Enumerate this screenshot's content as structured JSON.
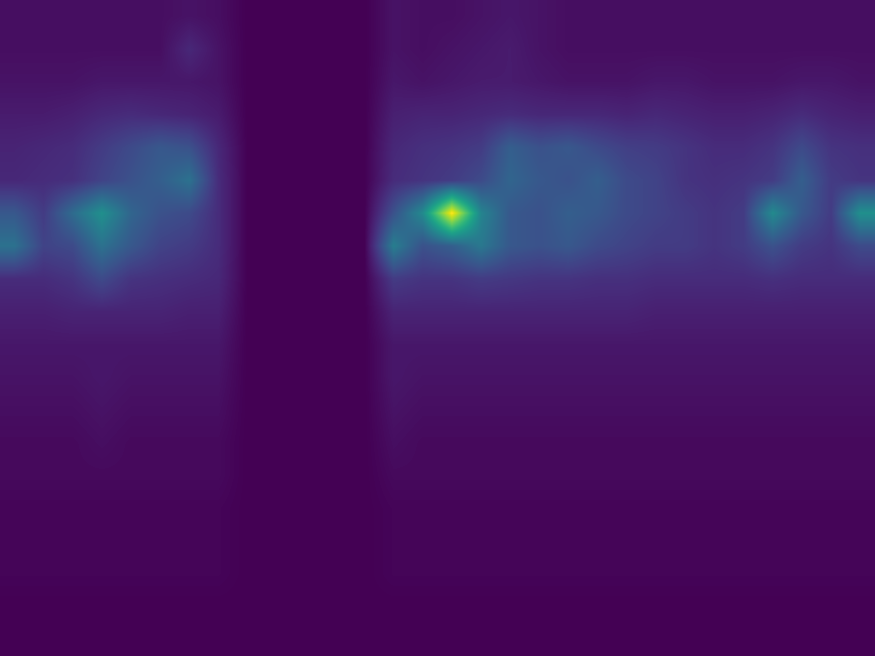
{
  "chart_data": {
    "type": "heatmap",
    "tick_labels": false,
    "cells": [
      [
        3,
        3,
        3,
        3,
        3,
        3,
        4,
        3,
        0,
        0,
        0,
        0,
        0,
        4,
        3,
        3,
        4,
        5,
        4,
        3,
        3,
        3,
        3,
        3,
        3,
        3,
        3,
        3,
        3,
        3
      ],
      [
        3,
        3,
        3,
        3,
        3,
        3,
        9,
        4,
        0,
        0,
        0,
        0,
        0,
        4,
        3,
        4,
        5,
        6,
        4,
        3,
        3,
        3,
        3,
        3,
        3,
        3,
        3,
        3,
        3,
        3
      ],
      [
        4,
        4,
        4,
        5,
        5,
        5,
        5,
        4,
        0,
        0,
        0,
        0,
        0,
        5,
        4,
        5,
        6,
        6,
        5,
        4,
        4,
        4,
        5,
        5,
        4,
        4,
        4,
        5,
        5,
        4
      ],
      [
        6,
        6,
        7,
        9,
        10,
        9,
        8,
        6,
        0,
        0,
        0,
        0,
        0,
        7,
        8,
        8,
        9,
        10,
        9,
        9,
        9,
        8,
        9,
        8,
        7,
        7,
        8,
        10,
        8,
        7
      ],
      [
        8,
        9,
        10,
        14,
        18,
        22,
        20,
        9,
        0,
        0,
        0,
        0,
        0,
        9,
        11,
        12,
        14,
        24,
        20,
        22,
        18,
        15,
        14,
        12,
        10,
        10,
        12,
        18,
        12,
        11
      ],
      [
        9,
        10,
        11,
        16,
        20,
        24,
        30,
        10,
        0,
        0,
        0,
        0,
        0,
        10,
        12,
        14,
        18,
        26,
        22,
        20,
        24,
        18,
        16,
        12,
        11,
        12,
        14,
        24,
        14,
        12
      ],
      [
        22,
        14,
        28,
        40,
        26,
        20,
        18,
        10,
        0,
        0,
        0,
        0,
        0,
        20,
        38,
        80,
        36,
        22,
        20,
        24,
        22,
        18,
        16,
        14,
        12,
        14,
        38,
        22,
        14,
        40
      ],
      [
        30,
        16,
        18,
        30,
        22,
        16,
        14,
        10,
        0,
        0,
        0,
        0,
        0,
        34,
        20,
        24,
        32,
        22,
        20,
        22,
        18,
        16,
        14,
        14,
        12,
        14,
        20,
        14,
        12,
        18
      ],
      [
        10,
        10,
        12,
        18,
        12,
        11,
        10,
        9,
        0,
        0,
        0,
        0,
        0,
        14,
        12,
        12,
        14,
        13,
        12,
        12,
        11,
        11,
        10,
        10,
        10,
        10,
        11,
        10,
        10,
        10
      ],
      [
        7,
        7,
        8,
        8,
        8,
        8,
        7,
        7,
        0,
        0,
        0,
        0,
        0,
        8,
        8,
        8,
        8,
        8,
        8,
        8,
        8,
        8,
        7,
        7,
        7,
        7,
        7,
        7,
        7,
        7
      ],
      [
        5,
        5,
        5,
        5,
        5,
        5,
        5,
        5,
        0,
        0,
        0,
        0,
        0,
        5,
        5,
        5,
        5,
        5,
        5,
        5,
        5,
        5,
        5,
        5,
        5,
        5,
        5,
        5,
        5,
        5
      ],
      [
        4,
        4,
        4,
        5,
        4,
        4,
        4,
        4,
        0,
        0,
        0,
        0,
        0,
        5,
        4,
        4,
        4,
        4,
        4,
        4,
        4,
        4,
        4,
        4,
        4,
        4,
        4,
        4,
        4,
        4
      ],
      [
        3,
        3,
        3,
        4,
        3,
        3,
        3,
        3,
        0,
        0,
        0,
        0,
        0,
        4,
        3,
        3,
        3,
        3,
        3,
        3,
        3,
        3,
        3,
        3,
        3,
        3,
        3,
        3,
        3,
        3
      ],
      [
        2,
        2,
        2,
        3,
        2,
        2,
        2,
        2,
        0,
        0,
        0,
        0,
        0,
        3,
        2,
        2,
        2,
        2,
        2,
        2,
        2,
        2,
        2,
        2,
        2,
        2,
        2,
        2,
        2,
        2
      ],
      [
        2,
        2,
        2,
        2,
        2,
        2,
        2,
        2,
        0,
        0,
        0,
        0,
        0,
        2,
        2,
        2,
        2,
        2,
        2,
        2,
        2,
        2,
        2,
        2,
        2,
        2,
        2,
        2,
        2,
        2
      ],
      [
        1,
        1,
        1,
        1,
        1,
        1,
        1,
        1,
        0,
        0,
        0,
        0,
        0,
        1,
        1,
        1,
        1,
        1,
        1,
        1,
        1,
        1,
        1,
        1,
        1,
        1,
        1,
        1,
        1,
        1
      ],
      [
        1,
        1,
        1,
        1,
        1,
        1,
        1,
        1,
        0,
        0,
        0,
        0,
        0,
        1,
        1,
        1,
        1,
        1,
        1,
        1,
        1,
        1,
        1,
        1,
        1,
        1,
        1,
        1,
        1,
        1
      ],
      [
        1,
        1,
        1,
        1,
        1,
        1,
        1,
        1,
        0,
        0,
        0,
        0,
        0,
        1,
        1,
        1,
        1,
        1,
        1,
        1,
        1,
        1,
        1,
        1,
        1,
        1,
        1,
        1,
        1,
        1
      ],
      [
        0,
        0,
        0,
        0,
        0,
        0,
        0,
        0,
        0,
        0,
        0,
        0,
        0,
        0,
        0,
        0,
        0,
        0,
        0,
        0,
        0,
        0,
        0,
        0,
        0,
        0,
        0,
        0,
        0,
        0
      ],
      [
        0,
        0,
        0,
        0,
        0,
        0,
        0,
        0,
        0,
        0,
        0,
        0,
        0,
        0,
        0,
        0,
        0,
        0,
        0,
        0,
        0,
        0,
        0,
        0,
        0,
        0,
        0,
        0,
        0,
        0
      ]
    ]
  }
}
